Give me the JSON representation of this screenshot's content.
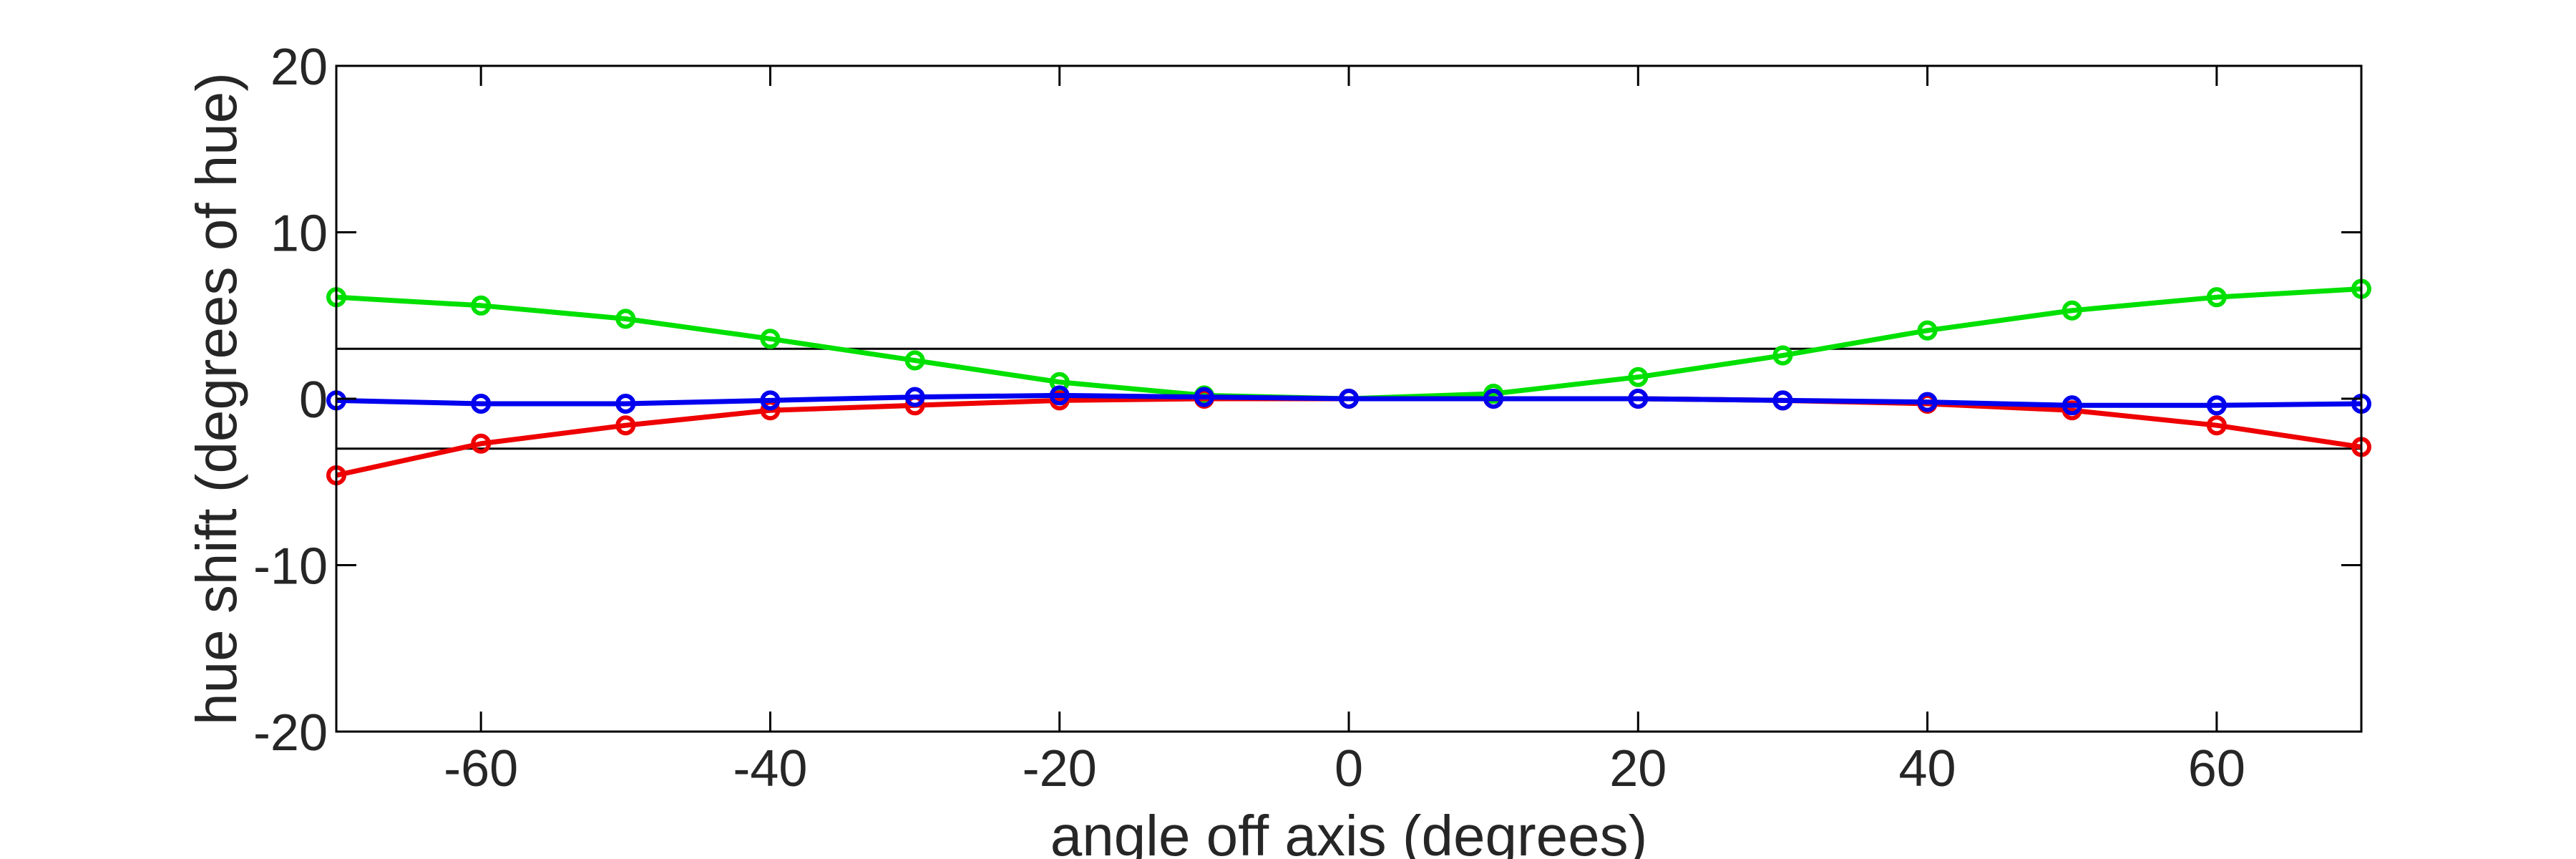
{
  "chart_data": {
    "type": "line",
    "xlabel": "angle off axis (degrees)",
    "ylabel": "hue shift (degrees of hue)",
    "xlim": [
      -70,
      70
    ],
    "ylim": [
      -20,
      20
    ],
    "xticks": [
      -60,
      -40,
      -20,
      0,
      20,
      40,
      60
    ],
    "yticks": [
      -20,
      -10,
      0,
      10,
      20
    ],
    "xtick_labels": [
      "-60",
      "-40",
      "-20",
      "0",
      "20",
      "40",
      "60"
    ],
    "ytick_labels": [
      "-20",
      "-10",
      "0",
      "10",
      "20"
    ],
    "grid": false,
    "legend": "none",
    "x": [
      -70,
      -60,
      -50,
      -40,
      -30,
      -20,
      -10,
      0,
      10,
      20,
      30,
      40,
      50,
      60,
      70
    ],
    "reference_lines": [
      3,
      -3
    ],
    "series": [
      {
        "color": "#00e000",
        "values": [
          6.1,
          5.6,
          4.8,
          3.6,
          2.3,
          1.0,
          0.2,
          0.0,
          0.3,
          1.3,
          2.6,
          4.1,
          5.3,
          6.1,
          6.6
        ]
      },
      {
        "color": "#ee0000",
        "values": [
          -4.6,
          -2.7,
          -1.6,
          -0.7,
          -0.4,
          -0.1,
          0.0,
          0.0,
          0.0,
          0.0,
          -0.1,
          -0.3,
          -0.7,
          -1.6,
          -2.9
        ]
      },
      {
        "color": "#0000ee",
        "values": [
          -0.1,
          -0.3,
          -0.3,
          -0.1,
          0.1,
          0.2,
          0.1,
          0.0,
          0.0,
          0.0,
          -0.1,
          -0.2,
          -0.4,
          -0.4,
          -0.3
        ]
      }
    ]
  }
}
